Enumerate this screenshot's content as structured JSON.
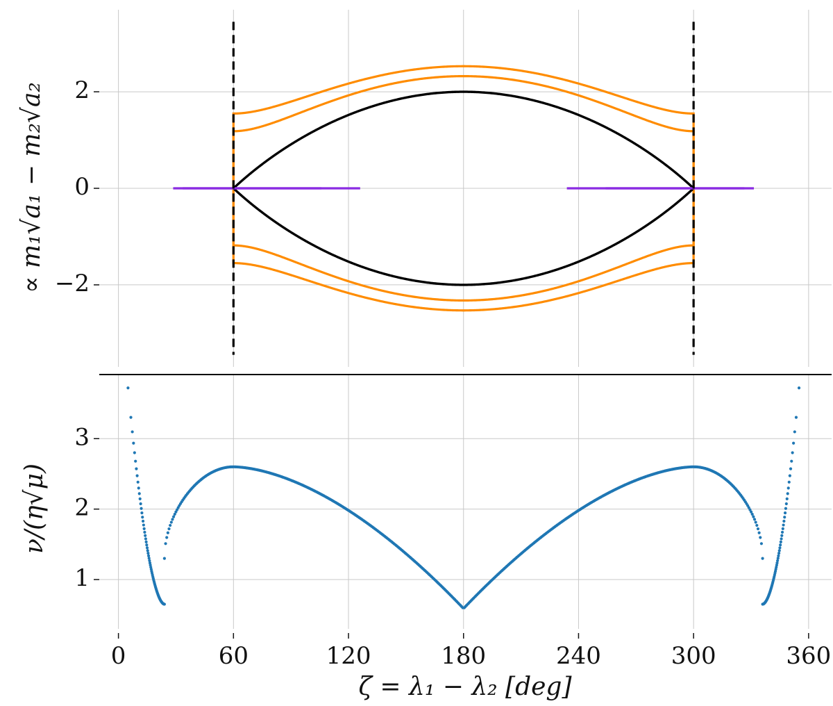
{
  "chart_data": [
    {
      "type": "line",
      "panel": "top",
      "ylabel": "∝ m₁√a₁ − m₂√a₂",
      "xlim": [
        -10,
        372
      ],
      "ylim": [
        -3.7,
        3.7
      ],
      "xticks": [
        0,
        60,
        120,
        180,
        240,
        300,
        360
      ],
      "yticks": [
        -2,
        0,
        2
      ],
      "ytick_labels": [
        "−2",
        "0",
        "2"
      ],
      "grid": true,
      "colors": {
        "circulating": "#ff8c00",
        "separatrix": "#000000",
        "tadpole": "#8a2be2",
        "dashed": "#000000"
      },
      "contours": [
        {
          "kind": "circulating",
          "levels": [
            1.2
          ]
        },
        {
          "kind": "circulating",
          "levels": [
            0.7
          ]
        },
        {
          "kind": "separatrix",
          "levels": [
            0.0
          ]
        },
        {
          "kind": "tadpole",
          "levels": [
            -0.8
          ]
        },
        {
          "kind": "tadpole",
          "levels": [
            -1.3
          ]
        }
      ],
      "dashed_lines": {
        "x": [
          60,
          300
        ],
        "y_range": [
          -3.45,
          3.45
        ]
      }
    },
    {
      "type": "scatter",
      "panel": "bottom",
      "xlabel": "ζ = λ₁ − λ₂ [deg]",
      "ylabel": "ν/(η√μ)",
      "xlim": [
        -10,
        372
      ],
      "ylim": [
        0.3,
        3.9
      ],
      "xticks": [
        0,
        60,
        120,
        180,
        240,
        300,
        360
      ],
      "yticks": [
        1,
        2,
        3
      ],
      "grid": true,
      "color": "#1f77b4",
      "x_range": [
        5,
        355
      ],
      "series": [
        {
          "branch": "circulating-left",
          "x_range": [
            5,
            24
          ],
          "y_range": [
            3.72,
            0.65
          ]
        },
        {
          "branch": "libration-left",
          "x_range": [
            24,
            179.6
          ],
          "y_peak": 2.6,
          "y_end": 0.6
        },
        {
          "branch": "libration-right",
          "x_range": [
            180.4,
            336
          ],
          "y_peak": 2.6,
          "y_end": 0.6
        },
        {
          "branch": "circulating-right",
          "x_range": [
            336,
            355
          ],
          "y_range": [
            0.65,
            3.72
          ]
        }
      ]
    }
  ]
}
